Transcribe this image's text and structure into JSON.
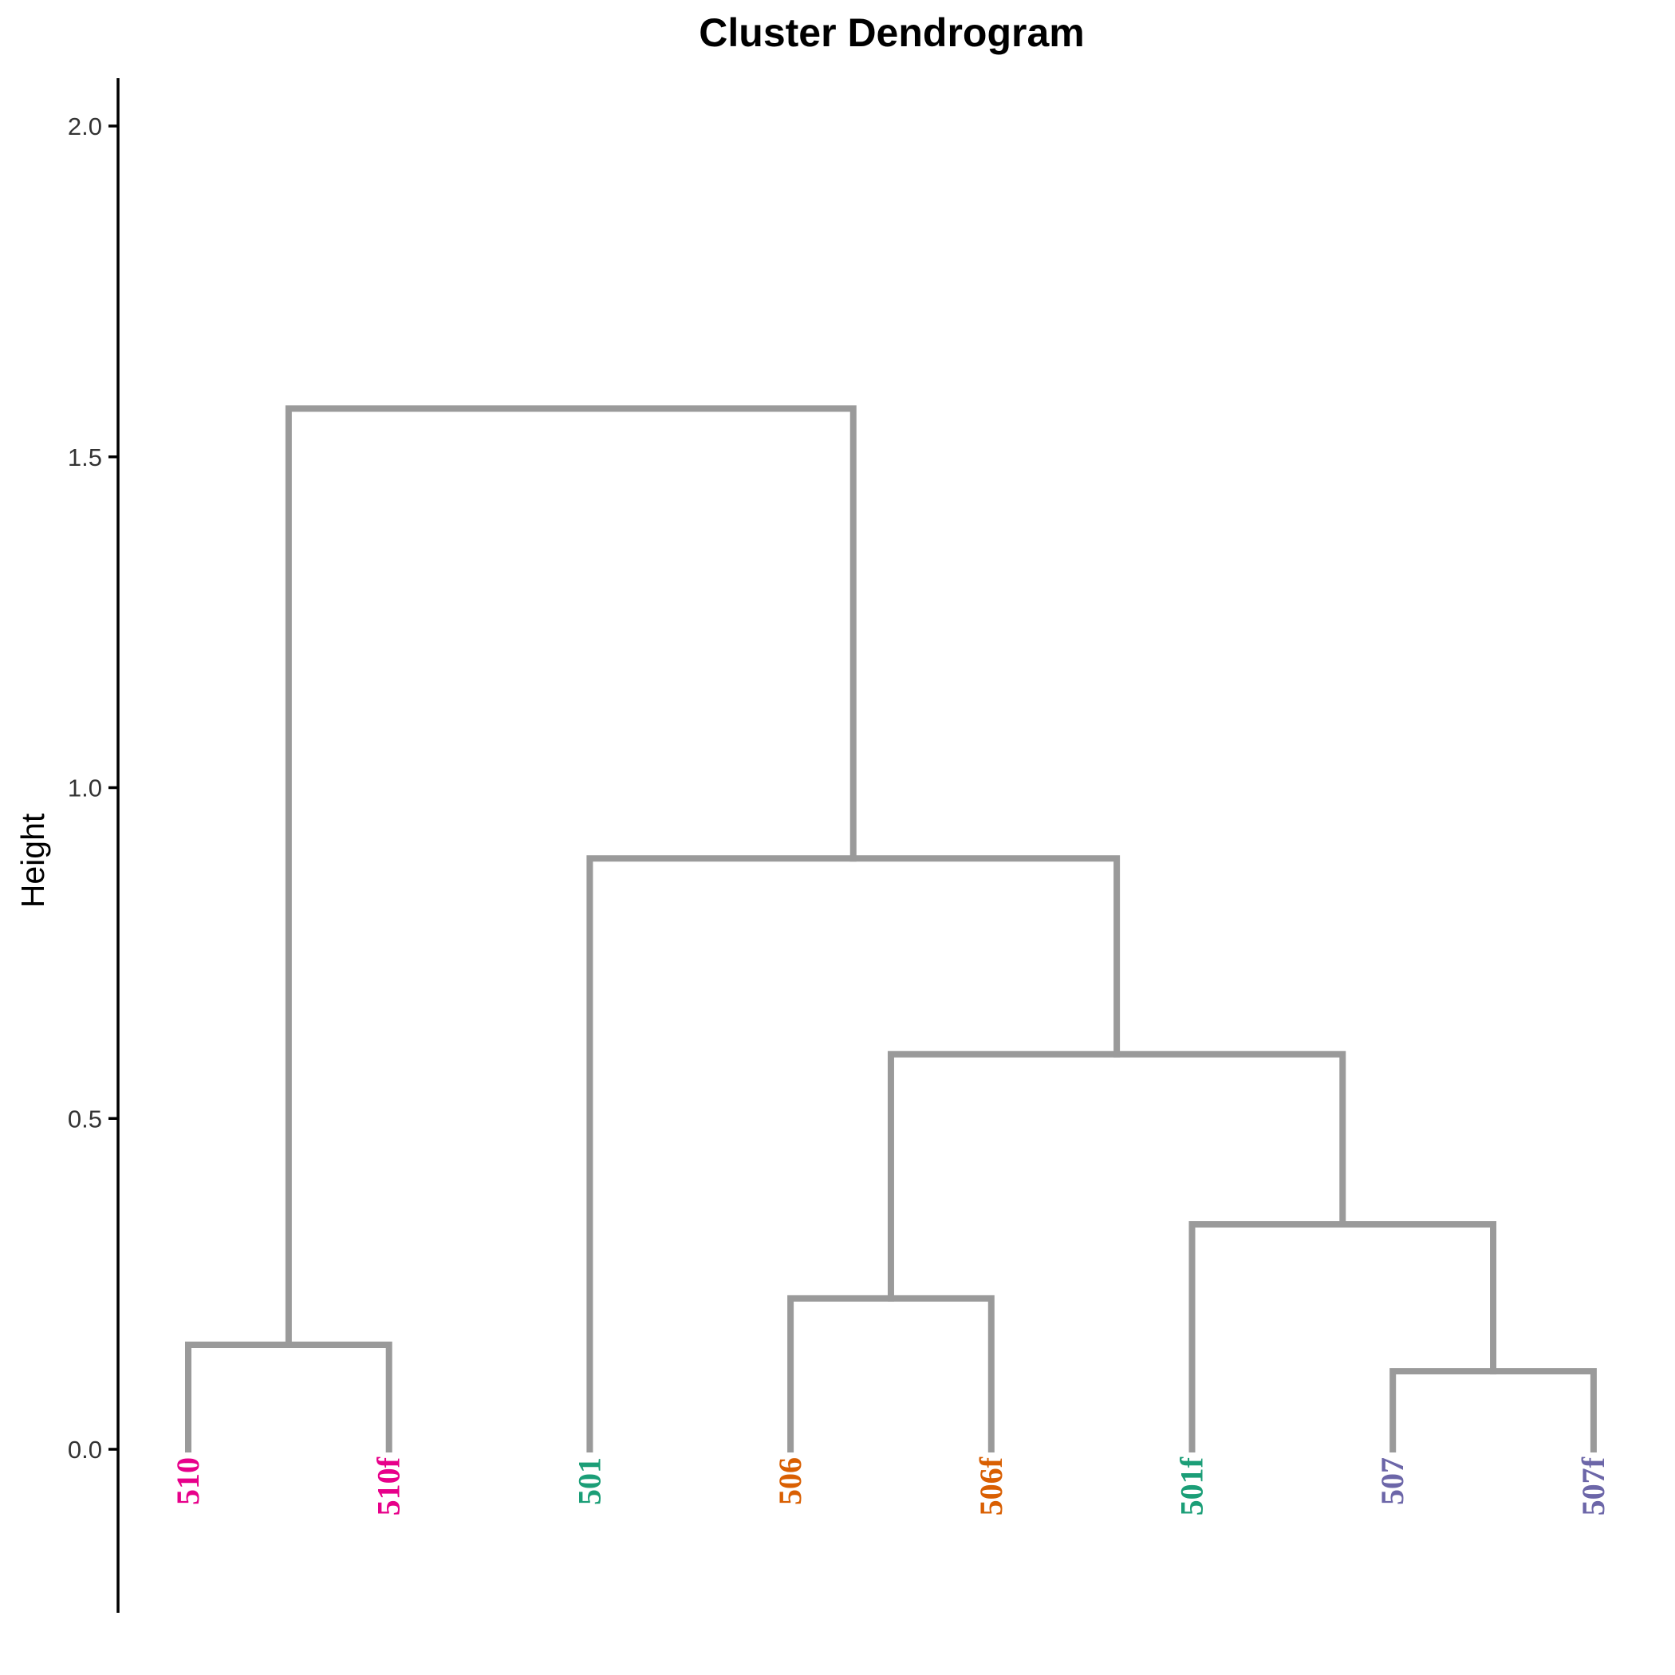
{
  "chart_data": {
    "type": "dendrogram",
    "title": "Cluster Dendrogram",
    "ylabel": "Height",
    "xlabel": "",
    "ylim": [
      -0.25,
      2.07
    ],
    "yticks": [
      0.0,
      0.5,
      1.0,
      1.5,
      2.0
    ],
    "ytick_labels": [
      "0.0",
      "0.5",
      "1.0",
      "1.5",
      "2.0"
    ],
    "grid": false,
    "leaves": [
      {
        "label": "510",
        "color": "#E7008A"
      },
      {
        "label": "510f",
        "color": "#E7008A"
      },
      {
        "label": "501",
        "color": "#1B9E77"
      },
      {
        "label": "506",
        "color": "#D95F02"
      },
      {
        "label": "506f",
        "color": "#D95F02"
      },
      {
        "label": "501f",
        "color": "#1B9E77"
      },
      {
        "label": "507",
        "color": "#6C66A8"
      },
      {
        "label": "507f",
        "color": "#6C66A8"
      }
    ],
    "merges": [
      {
        "left": "510",
        "right": "510f",
        "height": 0.158
      },
      {
        "left": "507",
        "right": "507f",
        "height": 0.118
      },
      {
        "left": "506",
        "right": "506f",
        "height": 0.228
      },
      {
        "left": "501f",
        "right": [
          "507",
          "507f"
        ],
        "height": 0.34
      },
      {
        "left": [
          "506",
          "506f"
        ],
        "right": [
          "501f",
          [
            "507",
            "507f"
          ]
        ],
        "height": 0.597
      },
      {
        "left": "501",
        "right": [
          [
            "506",
            "506f"
          ],
          [
            "501f",
            [
              "507",
              "507f"
            ]
          ]
        ],
        "height": 0.893
      },
      {
        "left": [
          "510",
          "510f"
        ],
        "right": [
          "501",
          [
            [
              "506",
              "506f"
            ],
            [
              "501f",
              [
                "507",
                "507f"
              ]
            ]
          ]
        ],
        "height": 1.573
      }
    ],
    "branch_color": "#9A9A9A"
  }
}
